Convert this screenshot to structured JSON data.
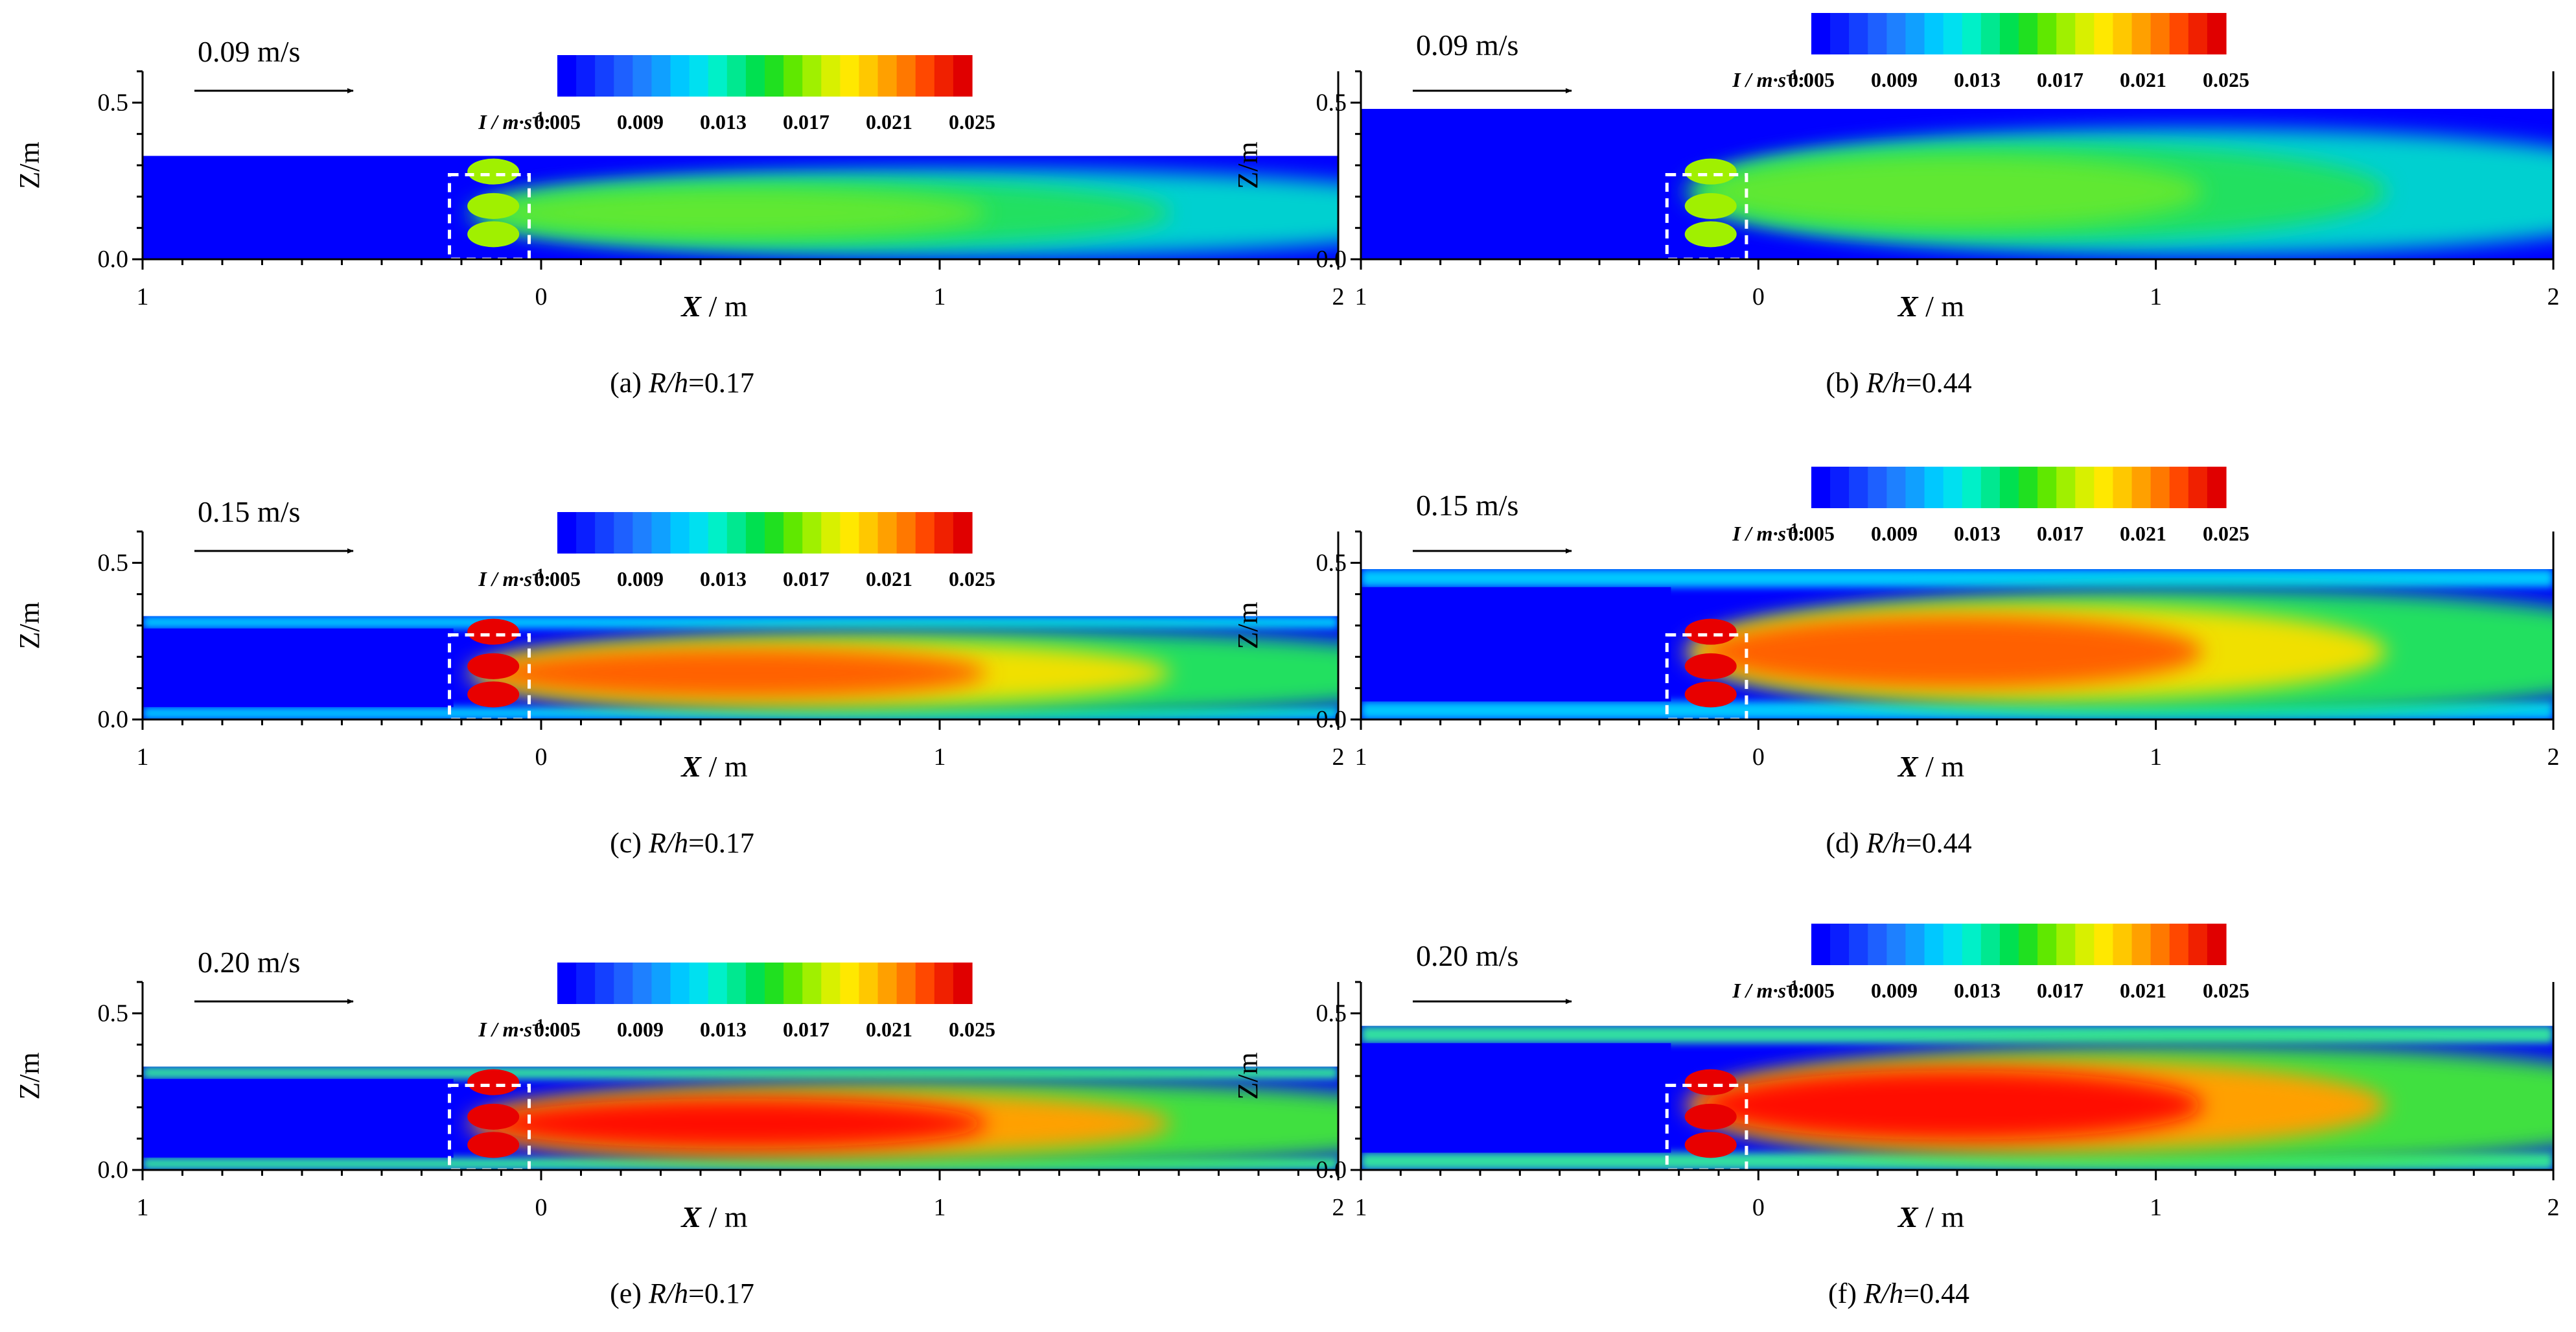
{
  "figure": {
    "colorbar": {
      "label": "I / m·s",
      "label_sup": "-1",
      "ticks": [
        "0.005",
        "0.009",
        "0.013",
        "0.017",
        "0.021",
        "0.025"
      ],
      "colors": [
        "#0000ff",
        "#0a1eff",
        "#1440ff",
        "#1e60ff",
        "#1e80ff",
        "#10a0ff",
        "#00c8ff",
        "#00e0f0",
        "#00f0c8",
        "#00e890",
        "#00e050",
        "#20e020",
        "#60e800",
        "#a0f000",
        "#d8f000",
        "#ffe800",
        "#ffc800",
        "#ffa000",
        "#ff7800",
        "#ff4800",
        "#f02000",
        "#e00000"
      ]
    },
    "axis": {
      "ylabel": "Z/m",
      "xlabel_bold": "X",
      "xlabel_unit": " / m",
      "yticks": [
        "0.0",
        "0.5"
      ],
      "xticks": [
        "1",
        "0",
        "1",
        "2"
      ]
    }
  },
  "chart_data": [
    {
      "type": "heatmap",
      "panel": "(a)",
      "caption_prefix": "(a) ",
      "caption_var": "R/h",
      "caption_value": "=0.17",
      "arrow_label": "0.09 m/s",
      "velocity_ms": 0.09,
      "ratio": 0.17,
      "water_depth_m": 0.33,
      "xlim": [
        -1,
        2
      ],
      "ylim": [
        0,
        0.6
      ],
      "background_color": "#0000ff",
      "turbulence_level": "low",
      "max_I": 0.013
    },
    {
      "type": "heatmap",
      "panel": "(b)",
      "caption_prefix": "(b) ",
      "caption_var": "R/h",
      "caption_value": "=0.44",
      "arrow_label": "0.09 m/s",
      "velocity_ms": 0.09,
      "ratio": 0.44,
      "water_depth_m": 0.48,
      "xlim": [
        -1,
        2
      ],
      "ylim": [
        0,
        0.6
      ],
      "background_color": "#0000ff",
      "turbulence_level": "low",
      "max_I": 0.013
    },
    {
      "type": "heatmap",
      "panel": "(c)",
      "caption_prefix": "(c) ",
      "caption_var": "R/h",
      "caption_value": "=0.17",
      "arrow_label": "0.15 m/s",
      "velocity_ms": 0.15,
      "ratio": 0.17,
      "water_depth_m": 0.33,
      "xlim": [
        -1,
        2
      ],
      "ylim": [
        0,
        0.6
      ],
      "background_color": "#0000ff",
      "turbulence_level": "medium",
      "max_I": 0.022
    },
    {
      "type": "heatmap",
      "panel": "(d)",
      "caption_prefix": "(d)    ",
      "caption_var": "R/h",
      "caption_value": "=0.44",
      "arrow_label": "0.15 m/s",
      "velocity_ms": 0.15,
      "ratio": 0.44,
      "water_depth_m": 0.48,
      "xlim": [
        -1,
        2
      ],
      "ylim": [
        0,
        0.6
      ],
      "background_color": "#0000ff",
      "turbulence_level": "medium",
      "max_I": 0.018
    },
    {
      "type": "heatmap",
      "panel": "(e)",
      "caption_prefix": "(e) ",
      "caption_var": "R/h",
      "caption_value": "=0.17",
      "arrow_label": "0.20 m/s",
      "velocity_ms": 0.2,
      "ratio": 0.17,
      "water_depth_m": 0.33,
      "xlim": [
        -1,
        2
      ],
      "ylim": [
        0,
        0.6
      ],
      "background_color": "#0000ff",
      "turbulence_level": "high",
      "max_I": 0.025
    },
    {
      "type": "heatmap",
      "panel": "(f)",
      "caption_prefix": "(f)    ",
      "caption_var": "R/h",
      "caption_value": "=0.44",
      "arrow_label": "0.20 m/s",
      "velocity_ms": 0.2,
      "ratio": 0.44,
      "water_depth_m": 0.46,
      "xlim": [
        -1,
        2
      ],
      "ylim": [
        0,
        0.6
      ],
      "background_color": "#0000ff",
      "turbulence_level": "high",
      "max_I": 0.025
    }
  ]
}
